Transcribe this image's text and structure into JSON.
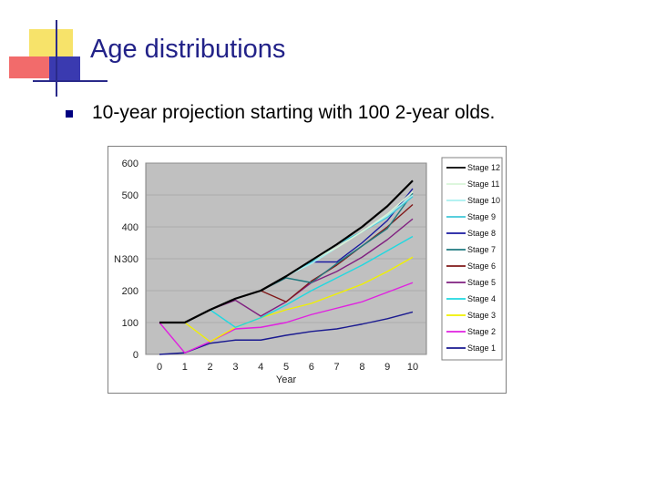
{
  "slide": {
    "title": "Age distributions",
    "bullet": "10-year projection starting with 100 2-year olds."
  },
  "colors": {
    "title": "#222288",
    "accent_yellow": "#f2d84a",
    "accent_red": "#f26060",
    "accent_blue": "#2a34a8",
    "plot_bg": "#c0c0c0"
  },
  "chart_data": {
    "type": "line",
    "xlabel": "Year",
    "ylabel": "N",
    "x": [
      0,
      1,
      2,
      3,
      4,
      5,
      6,
      7,
      8,
      9,
      10
    ],
    "x_ticks": [
      "0",
      "1",
      "2",
      "3",
      "4",
      "5",
      "6",
      "7",
      "8",
      "9",
      "10"
    ],
    "ylim": [
      0,
      600
    ],
    "y_ticks": [
      0,
      100,
      200,
      300,
      400,
      500,
      600
    ],
    "grid": true,
    "legend_position": "right",
    "series": [
      {
        "name": "Stage 12",
        "color": "#000000",
        "values": [
          100,
          100,
          140,
          175,
          200,
          245,
          295,
          345,
          400,
          465,
          545
        ]
      },
      {
        "name": "Stage 11",
        "color": "#d8f5d8",
        "values": [
          100,
          100,
          140,
          175,
          200,
          245,
          295,
          335,
          385,
          440,
          510
        ]
      },
      {
        "name": "Stage 10",
        "color": "#a8f0f0",
        "values": [
          100,
          100,
          140,
          175,
          200,
          245,
          285,
          335,
          385,
          435,
          500
        ]
      },
      {
        "name": "Stage 9",
        "color": "#40c8d8",
        "values": [
          100,
          100,
          140,
          175,
          200,
          245,
          290,
          345,
          385,
          430,
          495
        ]
      },
      {
        "name": "Stage 8",
        "color": "#1a1aa0",
        "values": [
          100,
          100,
          140,
          175,
          200,
          245,
          290,
          290,
          350,
          420,
          520
        ]
      },
      {
        "name": "Stage 7",
        "color": "#1f7a80",
        "values": [
          100,
          100,
          140,
          175,
          200,
          240,
          225,
          285,
          340,
          395,
          505
        ]
      },
      {
        "name": "Stage 6",
        "color": "#801818",
        "values": [
          100,
          100,
          140,
          175,
          200,
          165,
          230,
          280,
          340,
          400,
          470
        ]
      },
      {
        "name": "Stage 5",
        "color": "#802080",
        "values": [
          100,
          100,
          140,
          170,
          120,
          165,
          225,
          260,
          305,
          360,
          425
        ]
      },
      {
        "name": "Stage 4",
        "color": "#20d8e0",
        "values": [
          100,
          100,
          140,
          85,
          115,
          155,
          200,
          240,
          280,
          325,
          370
        ]
      },
      {
        "name": "Stage 3",
        "color": "#f0f000",
        "values": [
          100,
          100,
          40,
          85,
          115,
          140,
          160,
          190,
          220,
          260,
          305
        ]
      },
      {
        "name": "Stage 2",
        "color": "#e020e0",
        "values": [
          100,
          5,
          40,
          80,
          85,
          100,
          125,
          145,
          165,
          195,
          225
        ]
      },
      {
        "name": "Stage 1",
        "color": "#1a1a90",
        "values": [
          0,
          5,
          35,
          45,
          45,
          60,
          72,
          80,
          95,
          112,
          133
        ]
      }
    ]
  }
}
